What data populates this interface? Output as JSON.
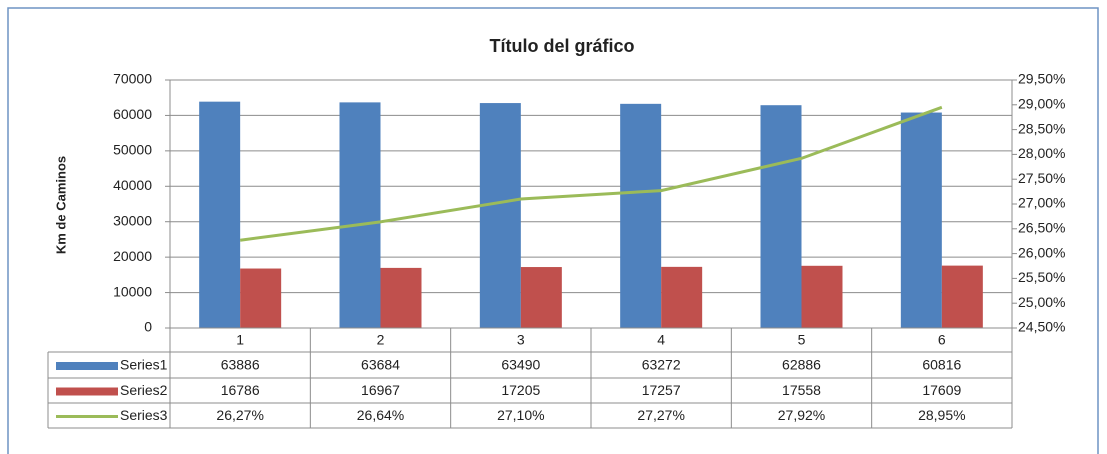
{
  "chart_data": {
    "type": "bar",
    "title": "Título del gráfico",
    "y_label": "Km de Caminos",
    "categories": [
      "1",
      "2",
      "3",
      "4",
      "5",
      "6"
    ],
    "series": [
      {
        "name": "Series1",
        "color": "#4f81bd",
        "values": [
          63886,
          63684,
          63490,
          63272,
          62886,
          60816
        ]
      },
      {
        "name": "Series2",
        "color": "#c0504d",
        "values": [
          16786,
          16967,
          17205,
          17257,
          17558,
          17609
        ]
      },
      {
        "name": "Series3",
        "color": "#9bbb59",
        "type": "line",
        "axis": "y2",
        "values": [
          26.27,
          26.64,
          27.1,
          27.27,
          27.92,
          28.95
        ],
        "value_labels": [
          "26,27%",
          "26,64%",
          "27,10%",
          "27,27%",
          "27,92%",
          "28,95%"
        ]
      }
    ],
    "ylim": [
      0,
      70000
    ],
    "yticks": [
      0,
      10000,
      20000,
      30000,
      40000,
      50000,
      60000,
      70000
    ],
    "y2lim": [
      24.5,
      29.5
    ],
    "y2ticks": [
      {
        "value": 24.5,
        "label": "24,50%"
      },
      {
        "value": 25,
        "label": "25,00%"
      },
      {
        "value": 25.5,
        "label": "25,50%"
      },
      {
        "value": 26,
        "label": "26,00%"
      },
      {
        "value": 26.5,
        "label": "26,50%"
      },
      {
        "value": 27,
        "label": "27,00%"
      },
      {
        "value": 27.5,
        "label": "27,50%"
      },
      {
        "value": 28,
        "label": "28,00%"
      },
      {
        "value": 28.5,
        "label": "28,50%"
      },
      {
        "value": 29,
        "label": "29,00%"
      },
      {
        "value": 29.5,
        "label": "29,50%"
      }
    ],
    "grid": true,
    "data_table": true
  }
}
